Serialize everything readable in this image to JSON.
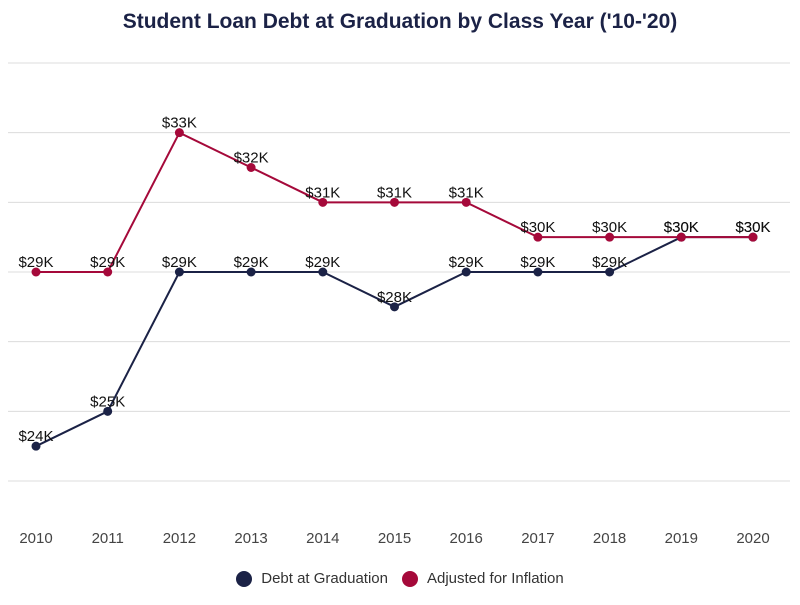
{
  "chart_data": {
    "type": "line",
    "title": "Student Loan Debt at Graduation by Class Year ('10-'20)",
    "xlabel": "",
    "ylabel": "",
    "categories": [
      "2010",
      "2011",
      "2012",
      "2013",
      "2014",
      "2015",
      "2016",
      "2017",
      "2018",
      "2019",
      "2020"
    ],
    "ylim": [
      23,
      35
    ],
    "y_gridlines": [
      23,
      25,
      27,
      29,
      31,
      33,
      35
    ],
    "y_tick_labels_shown": false,
    "grid": "horizontal",
    "legend_position": "bottom-center",
    "series": [
      {
        "name": "Debt at Graduation",
        "color": "#1b2246",
        "values": [
          24,
          25,
          29,
          29,
          29,
          28,
          29,
          29,
          29,
          30,
          30
        ],
        "labels": [
          "$24K",
          "$25K",
          "$29K",
          "$29K",
          "$29K",
          "$28K",
          "$29K",
          "$29K",
          "$29K",
          "$30K",
          "$30K"
        ]
      },
      {
        "name": "Adjusted for Inflation",
        "color": "#a5093a",
        "values": [
          29,
          29,
          33,
          32,
          31,
          31,
          31,
          30,
          30,
          30,
          30
        ],
        "labels": [
          "$29K",
          "$29K",
          "$33K",
          "$32K",
          "$31K",
          "$31K",
          "$31K",
          "$30K",
          "$30K",
          "$30K",
          "$30K"
        ]
      }
    ]
  }
}
